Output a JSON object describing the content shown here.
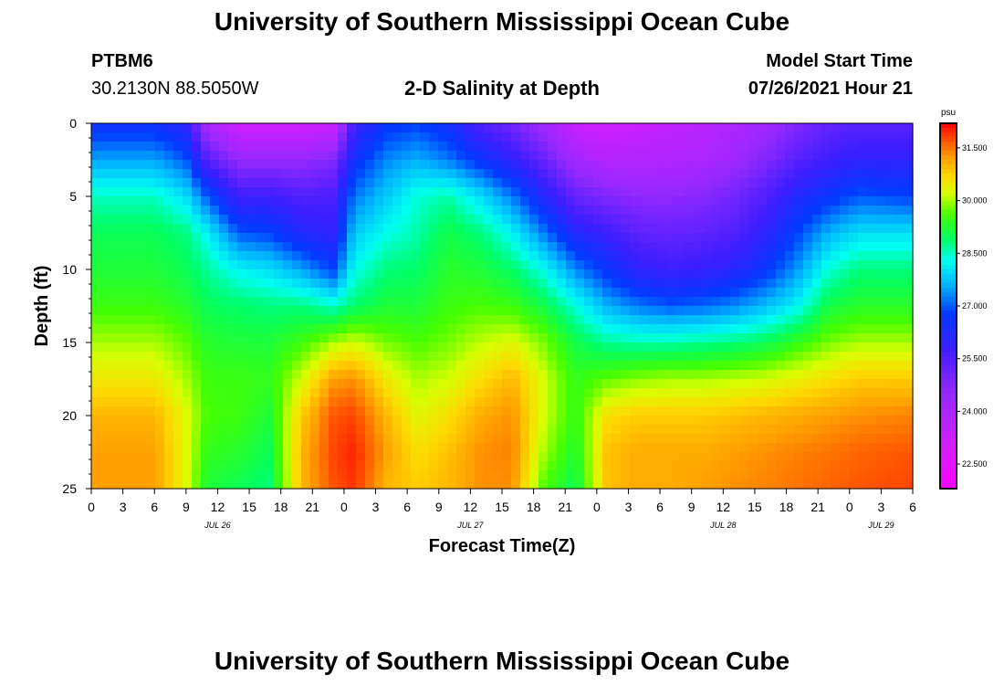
{
  "header": {
    "title": "University of Southern Mississippi Ocean Cube",
    "station_id": "PTBM6",
    "station_coords": "30.2130N  88.5050W",
    "plot_title": "2-D Salinity at Depth",
    "model_start_label": "Model Start Time",
    "model_start_value": "07/26/2021 Hour 21"
  },
  "footer": {
    "title": "University of Southern Mississippi Ocean Cube"
  },
  "chart_data": {
    "type": "heatmap",
    "title": "2-D Salinity at Depth",
    "xlabel": "Forecast Time(Z)",
    "ylabel": "Depth (ft)",
    "colorbar_unit": "psu",
    "colorbar_ticks": [
      "22.500",
      "24.000",
      "25.500",
      "27.000",
      "28.500",
      "30.000",
      "31.500"
    ],
    "colorbar_range": [
      21.8,
      32.2
    ],
    "y_ticks": [
      "0",
      "5",
      "10",
      "15",
      "20",
      "25"
    ],
    "ylim": [
      25,
      0
    ],
    "x_ticks": [
      "0",
      "3",
      "6",
      "9",
      "12",
      "15",
      "18",
      "21",
      "0",
      "3",
      "6",
      "9",
      "12",
      "15",
      "18",
      "21",
      "0",
      "3",
      "6",
      "9",
      "12",
      "15",
      "18",
      "21",
      "0",
      "3",
      "6"
    ],
    "x_range_hours": [
      0,
      78
    ],
    "date_labels": [
      {
        "text": "JUL 26",
        "hour": 12
      },
      {
        "text": "JUL 27",
        "hour": 36
      },
      {
        "text": "JUL 28",
        "hour": 60
      },
      {
        "text": "JUL 29",
        "hour": 75
      }
    ],
    "depth_levels_ft": [
      0,
      2.5,
      5,
      7.5,
      10,
      12.5,
      15,
      17.5,
      20,
      22.5,
      25
    ],
    "salinity_profiles_psu": [
      {
        "hour": 0,
        "values": [
          26.5,
          27.5,
          28.5,
          29.0,
          29.2,
          29.5,
          30.0,
          30.5,
          31.0,
          31.2,
          31.2
        ]
      },
      {
        "hour": 6,
        "values": [
          26.5,
          27.5,
          28.5,
          29.0,
          29.2,
          29.5,
          30.0,
          30.5,
          31.0,
          31.2,
          31.2
        ]
      },
      {
        "hour": 9,
        "values": [
          26.0,
          27.0,
          28.0,
          28.8,
          29.0,
          29.3,
          29.7,
          30.0,
          30.3,
          30.3,
          30.3
        ]
      },
      {
        "hour": 11,
        "values": [
          24.0,
          25.5,
          27.0,
          28.2,
          28.7,
          29.0,
          29.3,
          29.5,
          29.6,
          29.4,
          29.2
        ]
      },
      {
        "hour": 14,
        "values": [
          23.0,
          24.5,
          25.8,
          27.0,
          28.2,
          28.9,
          29.2,
          29.5,
          29.5,
          29.3,
          29.0
        ]
      },
      {
        "hour": 17,
        "values": [
          23.0,
          24.5,
          25.8,
          26.8,
          28.0,
          28.8,
          29.2,
          29.4,
          29.2,
          29.0,
          28.8
        ]
      },
      {
        "hour": 20,
        "values": [
          23.0,
          24.5,
          25.5,
          26.2,
          27.5,
          28.8,
          29.5,
          30.2,
          30.8,
          31.0,
          31.0
        ]
      },
      {
        "hour": 23,
        "values": [
          23.2,
          24.8,
          25.6,
          26.0,
          26.8,
          28.5,
          30.0,
          31.2,
          31.7,
          31.8,
          31.7
        ]
      },
      {
        "hour": 25,
        "values": [
          25.8,
          26.5,
          27.2,
          27.8,
          28.3,
          28.9,
          30.2,
          31.3,
          31.8,
          32.0,
          31.9
        ]
      },
      {
        "hour": 28,
        "values": [
          26.6,
          27.3,
          27.8,
          28.3,
          28.8,
          29.2,
          29.8,
          30.5,
          31.0,
          31.2,
          31.0
        ]
      },
      {
        "hour": 31,
        "values": [
          26.8,
          27.6,
          28.4,
          28.6,
          28.9,
          29.2,
          29.6,
          30.0,
          30.3,
          30.6,
          30.8
        ]
      },
      {
        "hour": 34,
        "values": [
          26.4,
          27.2,
          28.6,
          29.1,
          29.3,
          29.5,
          29.8,
          30.2,
          30.6,
          30.9,
          31.0
        ]
      },
      {
        "hour": 37,
        "values": [
          25.5,
          26.6,
          28.0,
          28.8,
          29.2,
          29.6,
          30.1,
          30.6,
          31.1,
          31.3,
          31.3
        ]
      },
      {
        "hour": 40,
        "values": [
          25.0,
          26.0,
          27.2,
          28.2,
          28.9,
          29.5,
          30.3,
          31.0,
          31.3,
          31.4,
          31.3
        ]
      },
      {
        "hour": 43,
        "values": [
          24.2,
          25.2,
          26.2,
          27.2,
          28.3,
          29.1,
          29.8,
          30.2,
          30.2,
          30.0,
          29.6
        ]
      },
      {
        "hour": 46,
        "values": [
          23.2,
          24.2,
          25.2,
          26.2,
          27.3,
          28.4,
          29.1,
          29.4,
          29.4,
          29.2,
          29.0
        ]
      },
      {
        "hour": 49,
        "values": [
          23.0,
          23.8,
          24.8,
          25.8,
          26.6,
          27.6,
          28.7,
          29.7,
          30.6,
          30.9,
          30.9
        ]
      },
      {
        "hour": 52,
        "values": [
          23.2,
          23.8,
          24.6,
          25.3,
          26.0,
          27.2,
          28.6,
          29.9,
          30.8,
          31.1,
          31.1
        ]
      },
      {
        "hour": 55,
        "values": [
          23.4,
          23.9,
          24.6,
          25.2,
          25.8,
          27.0,
          28.6,
          30.0,
          30.8,
          31.1,
          31.1
        ]
      },
      {
        "hour": 58,
        "values": [
          23.6,
          24.0,
          24.7,
          25.3,
          25.9,
          27.1,
          28.7,
          30.0,
          30.8,
          31.1,
          31.2
        ]
      },
      {
        "hour": 61,
        "values": [
          23.9,
          24.3,
          25.0,
          25.5,
          26.1,
          27.3,
          28.8,
          30.1,
          30.9,
          31.2,
          31.3
        ]
      },
      {
        "hour": 64,
        "values": [
          24.2,
          24.8,
          25.5,
          26.0,
          26.6,
          27.7,
          29.0,
          30.2,
          31.0,
          31.3,
          31.4
        ]
      },
      {
        "hour": 67,
        "values": [
          24.8,
          25.4,
          26.2,
          26.8,
          27.4,
          28.2,
          29.4,
          30.4,
          31.1,
          31.4,
          31.5
        ]
      },
      {
        "hour": 70,
        "values": [
          25.2,
          25.8,
          26.6,
          27.6,
          28.4,
          29.1,
          29.8,
          30.6,
          31.2,
          31.5,
          31.6
        ]
      },
      {
        "hour": 73,
        "values": [
          25.4,
          26.0,
          27.0,
          28.0,
          28.8,
          29.3,
          30.0,
          30.8,
          31.3,
          31.6,
          31.7
        ]
      },
      {
        "hour": 78,
        "values": [
          25.4,
          26.0,
          26.8,
          28.0,
          28.8,
          29.3,
          30.0,
          30.8,
          31.4,
          31.7,
          31.8
        ]
      }
    ]
  }
}
